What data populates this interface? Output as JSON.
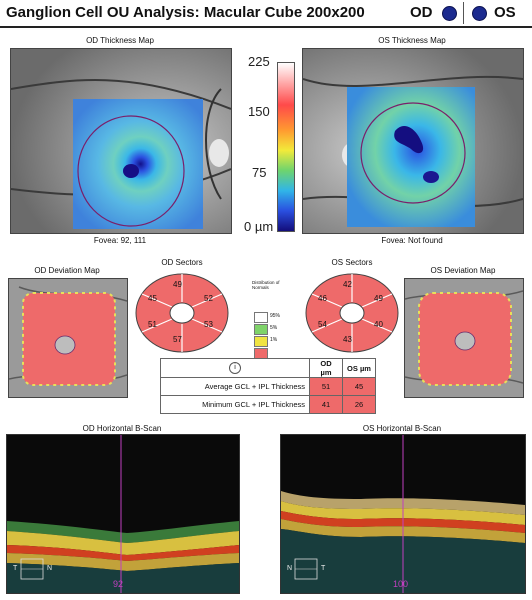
{
  "header": {
    "title": "Ganglion Cell OU Analysis: Macular Cube 200x200",
    "od_label": "OD",
    "os_label": "OS"
  },
  "thickness_maps": {
    "od_title": "OD Thickness Map",
    "os_title": "OS Thickness Map",
    "od_fovea": "Fovea: 92, 111",
    "os_fovea": "Fovea: Not found"
  },
  "colorbar": {
    "labels": [
      "225",
      "150",
      "75",
      "0 µm"
    ]
  },
  "deviation_maps": {
    "od_title": "OD Deviation Map",
    "os_title": "OS Deviation Map"
  },
  "sectors": {
    "od_title": "OD Sectors",
    "os_title": "OS Sectors",
    "od_values": {
      "top": "49",
      "upper_right": "52",
      "lower_right": "53",
      "bottom": "57",
      "lower_left": "51",
      "upper_left": "45"
    },
    "os_values": {
      "top": "42",
      "upper_right": "49",
      "lower_right": "40",
      "bottom": "43",
      "lower_left": "54",
      "upper_left": "46"
    }
  },
  "normative_legend": {
    "title": "Distribution of Normals",
    "items": [
      "95%",
      "5%",
      "1%"
    ]
  },
  "metrics_table": {
    "col_od": "OD µm",
    "col_os": "OS µm",
    "rows": [
      {
        "label": "Average GCL + IPL Thickness",
        "od": "51",
        "os": "45"
      },
      {
        "label": "Minimum GCL + IPL Thickness",
        "od": "41",
        "os": "26"
      }
    ]
  },
  "bscans": {
    "od_title": "OD Horizontal B-Scan",
    "os_title": "OS Horizontal B-Scan",
    "od_position": "92",
    "os_position": "100",
    "orientation_t": "T",
    "orientation_n": "N"
  },
  "colors": {
    "eye_dot": "#1b2a8f",
    "deviation_red": "#ee6a6a",
    "marker_magenta": "#c040c0"
  }
}
